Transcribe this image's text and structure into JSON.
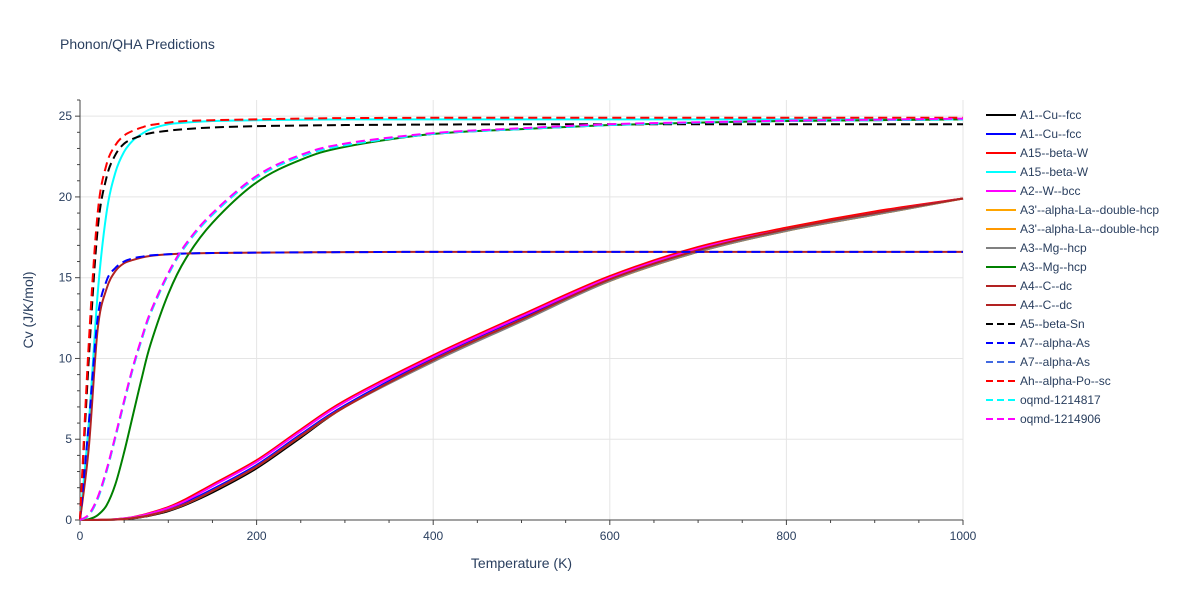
{
  "title": "Phonon/QHA Predictions",
  "chart_data": {
    "type": "line",
    "title": "Phonon/QHA Predictions",
    "xlabel": "Temperature (K)",
    "ylabel": "Cv (J/K/mol)",
    "xlim": [
      0,
      1000
    ],
    "ylim": [
      0,
      26
    ],
    "xticks": [
      0,
      200,
      400,
      600,
      800,
      1000
    ],
    "yticks": [
      0,
      5,
      10,
      15,
      20,
      25
    ],
    "grid": true,
    "legend_position": "right",
    "x": [
      0,
      10,
      20,
      30,
      40,
      50,
      60,
      70,
      80,
      100,
      120,
      150,
      200,
      250,
      300,
      400,
      500,
      600,
      700,
      800,
      900,
      1000
    ],
    "series": [
      {
        "name": "A1--Cu--fcc",
        "color": "#000000",
        "dash": "solid",
        "values": [
          0,
          0,
          0,
          0.01,
          0.02,
          0.05,
          0.1,
          0.18,
          0.28,
          0.55,
          0.95,
          1.7,
          3.2,
          5.1,
          7.0,
          9.9,
          12.4,
          14.9,
          16.7,
          18.0,
          19.0,
          19.9
        ]
      },
      {
        "name": "A1--Cu--fcc",
        "color": "#0000ff",
        "dash": "solid",
        "values": [
          0,
          0,
          0,
          0.01,
          0.03,
          0.07,
          0.14,
          0.23,
          0.35,
          0.65,
          1.1,
          1.9,
          3.4,
          5.3,
          7.1,
          10.0,
          12.5,
          14.9,
          16.7,
          18.0,
          19.0,
          19.9
        ]
      },
      {
        "name": "A15--beta-W",
        "color": "#ff0000",
        "dash": "solid",
        "values": [
          0,
          0,
          0.01,
          0.02,
          0.05,
          0.1,
          0.18,
          0.3,
          0.45,
          0.8,
          1.3,
          2.2,
          3.7,
          5.6,
          7.4,
          10.2,
          12.7,
          15.1,
          16.9,
          18.1,
          19.1,
          19.9
        ]
      },
      {
        "name": "A15--beta-W",
        "color": "#00ffff",
        "dash": "solid",
        "values": [
          0,
          6,
          14,
          19,
          21.5,
          22.8,
          23.5,
          23.9,
          24.2,
          24.5,
          24.6,
          24.7,
          24.75,
          24.78,
          24.8,
          24.8,
          24.8,
          24.8,
          24.8,
          24.8,
          24.8,
          24.8
        ]
      },
      {
        "name": "A2--W--bcc",
        "color": "#ff00ff",
        "dash": "solid",
        "values": [
          0,
          0,
          0.01,
          0.02,
          0.05,
          0.1,
          0.17,
          0.28,
          0.42,
          0.75,
          1.2,
          2.1,
          3.6,
          5.5,
          7.3,
          10.1,
          12.6,
          15.0,
          16.8,
          18.0,
          19.0,
          19.9
        ]
      },
      {
        "name": "A3'--alpha-La--double-hcp",
        "color": "#ffa500",
        "dash": "solid",
        "values": [
          0,
          0,
          0,
          0.01,
          0.03,
          0.06,
          0.12,
          0.2,
          0.31,
          0.6,
          1.0,
          1.8,
          3.3,
          5.2,
          7.0,
          9.9,
          12.4,
          14.8,
          16.6,
          17.9,
          18.9,
          19.9
        ]
      },
      {
        "name": "A3'--alpha-La--double-hcp",
        "color": "#ff9800",
        "dash": "solid",
        "values": [
          0,
          0,
          0,
          0.01,
          0.03,
          0.06,
          0.12,
          0.2,
          0.31,
          0.6,
          1.0,
          1.8,
          3.3,
          5.2,
          7.0,
          9.9,
          12.4,
          14.8,
          16.6,
          17.9,
          18.9,
          19.9
        ]
      },
      {
        "name": "A3--Mg--hcp",
        "color": "#808080",
        "dash": "solid",
        "values": [
          0,
          0,
          0,
          0.01,
          0.03,
          0.06,
          0.12,
          0.2,
          0.31,
          0.6,
          1.0,
          1.8,
          3.3,
          5.2,
          7.0,
          9.8,
          12.3,
          14.8,
          16.6,
          17.9,
          18.9,
          19.9
        ]
      },
      {
        "name": "A3--Mg--hcp",
        "color": "#008000",
        "dash": "solid",
        "values": [
          0,
          0.05,
          0.3,
          0.9,
          2.2,
          4.2,
          6.5,
          8.8,
          10.9,
          14.0,
          16.2,
          18.4,
          20.9,
          22.3,
          23.1,
          23.9,
          24.2,
          24.45,
          24.6,
          24.7,
          24.75,
          24.8
        ]
      },
      {
        "name": "A4--C--dc",
        "color": "#b22222",
        "dash": "solid",
        "values": [
          0,
          0,
          0,
          0.01,
          0.03,
          0.06,
          0.12,
          0.2,
          0.31,
          0.6,
          1.0,
          1.8,
          3.3,
          5.2,
          7.0,
          9.9,
          12.4,
          14.9,
          16.7,
          18.0,
          19.0,
          19.9
        ]
      },
      {
        "name": "A4--C--dc",
        "color": "#b22222",
        "dash": "solid",
        "values": [
          0,
          4.5,
          11.8,
          14.3,
          15.4,
          15.9,
          16.1,
          16.25,
          16.35,
          16.45,
          16.5,
          16.53,
          16.55,
          16.57,
          16.58,
          16.6,
          16.6,
          16.6,
          16.6,
          16.6,
          16.6,
          16.6
        ]
      },
      {
        "name": "A5--beta-Sn",
        "color": "#000000",
        "dash": "dash",
        "values": [
          0,
          10,
          18,
          21.2,
          22.6,
          23.3,
          23.6,
          23.8,
          23.95,
          24.1,
          24.2,
          24.3,
          24.38,
          24.42,
          24.45,
          24.48,
          24.5,
          24.5,
          24.5,
          24.5,
          24.5,
          24.5
        ]
      },
      {
        "name": "A7--alpha-As",
        "color": "#0000ff",
        "dash": "dash",
        "values": [
          0,
          6,
          12.5,
          14.8,
          15.6,
          16.0,
          16.2,
          16.3,
          16.38,
          16.45,
          16.5,
          16.53,
          16.55,
          16.57,
          16.58,
          16.6,
          16.6,
          16.6,
          16.6,
          16.6,
          16.6,
          16.6
        ]
      },
      {
        "name": "A7--alpha-As",
        "color": "#4169e1",
        "dash": "dash",
        "values": [
          0,
          0.3,
          1.3,
          3.0,
          5.1,
          7.3,
          9.4,
          11.2,
          12.8,
          15.2,
          17.0,
          18.9,
          21.2,
          22.5,
          23.2,
          23.9,
          24.2,
          24.45,
          24.6,
          24.7,
          24.75,
          24.8
        ]
      },
      {
        "name": "Ah--alpha-Po--sc",
        "color": "#ff0000",
        "dash": "dash",
        "values": [
          0,
          11,
          19,
          22,
          23.2,
          23.8,
          24.1,
          24.3,
          24.45,
          24.6,
          24.7,
          24.75,
          24.8,
          24.85,
          24.88,
          24.9,
          24.9,
          24.9,
          24.9,
          24.9,
          24.9,
          24.9
        ]
      },
      {
        "name": "oqmd-1214817",
        "color": "#00ffff",
        "dash": "dash",
        "values": [
          0,
          0.3,
          1.3,
          3.0,
          5.1,
          7.3,
          9.4,
          11.2,
          12.8,
          15.2,
          17.0,
          18.9,
          21.2,
          22.5,
          23.2,
          23.9,
          24.2,
          24.45,
          24.6,
          24.7,
          24.75,
          24.8
        ]
      },
      {
        "name": "oqmd-1214906",
        "color": "#ff00ff",
        "dash": "dash",
        "values": [
          0,
          0.35,
          1.4,
          3.1,
          5.2,
          7.4,
          9.5,
          11.3,
          12.9,
          15.3,
          17.1,
          19.0,
          21.3,
          22.6,
          23.3,
          23.95,
          24.25,
          24.5,
          24.62,
          24.72,
          24.78,
          24.85
        ]
      }
    ]
  }
}
